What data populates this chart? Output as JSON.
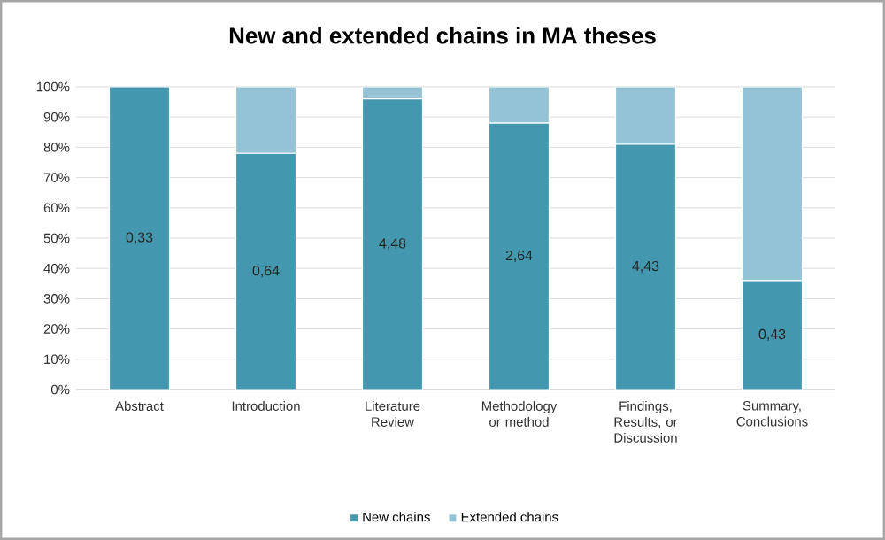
{
  "chart_data": {
    "type": "bar",
    "title": "New and extended chains in MA theses",
    "stacked": true,
    "categories": [
      "Abstract",
      "Introduction",
      "Literature Review",
      "Methodology or method",
      "Findings, Results, or Discussion",
      "Summary, Conclusions"
    ],
    "series": [
      {
        "name": "New chains",
        "color": "#4398b0",
        "values": [
          100,
          78,
          96,
          88,
          81,
          36
        ]
      },
      {
        "name": "Extended chains",
        "color": "#93c3d5",
        "values": [
          0,
          22,
          4,
          12,
          19,
          64
        ]
      }
    ],
    "annotations": [
      "0,33",
      "0,64",
      "4,48",
      "2,64",
      "4,43",
      "0,43"
    ],
    "ylim": [
      0,
      100
    ],
    "yticks": [
      {
        "value": 0,
        "label": "0%"
      },
      {
        "value": 10,
        "label": "10%"
      },
      {
        "value": 20,
        "label": "20%"
      },
      {
        "value": 30,
        "label": "30%"
      },
      {
        "value": 40,
        "label": "40%"
      },
      {
        "value": 50,
        "label": "50%"
      },
      {
        "value": 60,
        "label": "60%"
      },
      {
        "value": 70,
        "label": "70%"
      },
      {
        "value": 80,
        "label": "80%"
      },
      {
        "value": 90,
        "label": "90%"
      },
      {
        "value": 100,
        "label": "100%"
      }
    ],
    "grid": "y",
    "legend": "bottom"
  }
}
